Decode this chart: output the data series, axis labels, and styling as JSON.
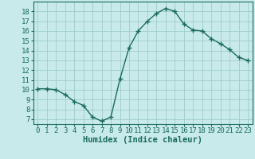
{
  "x": [
    0,
    1,
    2,
    3,
    4,
    5,
    6,
    7,
    8,
    9,
    10,
    11,
    12,
    13,
    14,
    15,
    16,
    17,
    18,
    19,
    20,
    21,
    22,
    23
  ],
  "y": [
    10.1,
    10.1,
    10.0,
    9.5,
    8.8,
    8.4,
    7.2,
    6.8,
    7.2,
    11.1,
    14.3,
    16.0,
    17.0,
    17.8,
    18.3,
    18.0,
    16.7,
    16.1,
    16.0,
    15.2,
    14.7,
    14.1,
    13.3,
    13.0
  ],
  "line_color": "#1a6b5a",
  "marker": "+",
  "marker_size": 4,
  "marker_lw": 1.0,
  "bg_color": "#c8eaea",
  "grid_color": "#a0cccc",
  "xlabel": "Humidex (Indice chaleur)",
  "ylim": [
    6.5,
    19.0
  ],
  "xlim": [
    -0.5,
    23.5
  ],
  "yticks": [
    7,
    8,
    9,
    10,
    11,
    12,
    13,
    14,
    15,
    16,
    17,
    18
  ],
  "xticks": [
    0,
    1,
    2,
    3,
    4,
    5,
    6,
    7,
    8,
    9,
    10,
    11,
    12,
    13,
    14,
    15,
    16,
    17,
    18,
    19,
    20,
    21,
    22,
    23
  ],
  "tick_fontsize": 6.5,
  "xlabel_fontsize": 7.5,
  "line_width": 1.0
}
